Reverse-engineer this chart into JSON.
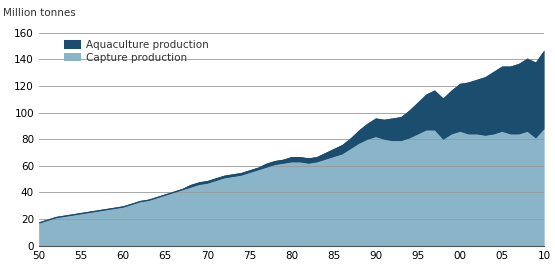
{
  "years": [
    1950,
    1951,
    1952,
    1953,
    1954,
    1955,
    1956,
    1957,
    1958,
    1959,
    1960,
    1961,
    1962,
    1963,
    1964,
    1965,
    1966,
    1967,
    1968,
    1969,
    1970,
    1971,
    1972,
    1973,
    1974,
    1975,
    1976,
    1977,
    1978,
    1979,
    1980,
    1981,
    1982,
    1983,
    1984,
    1985,
    1986,
    1987,
    1988,
    1989,
    1990,
    1991,
    1992,
    1993,
    1994,
    1995,
    1996,
    1997,
    1998,
    1999,
    2000,
    2001,
    2002,
    2003,
    2004,
    2005,
    2006,
    2007,
    2008,
    2009,
    2010
  ],
  "capture": [
    17,
    19,
    21,
    22,
    23,
    24,
    25,
    26,
    27,
    28,
    29,
    31,
    33,
    34,
    36,
    38,
    40,
    42,
    44,
    46,
    47,
    49,
    51,
    52,
    53,
    55,
    57,
    59,
    61,
    62,
    63,
    63,
    62,
    63,
    65,
    67,
    69,
    73,
    77,
    80,
    82,
    80,
    79,
    79,
    81,
    84,
    87,
    87,
    80,
    84,
    86,
    84,
    84,
    83,
    84,
    86,
    84,
    84,
    86,
    81,
    88
  ],
  "aquaculture": [
    1,
    1,
    1,
    1,
    1,
    1,
    1,
    1,
    1,
    1,
    1,
    1,
    1,
    1,
    1,
    1,
    1,
    1,
    2,
    2,
    2,
    2,
    2,
    2,
    2,
    2,
    2,
    3,
    3,
    3,
    4,
    4,
    4,
    4,
    5,
    6,
    7,
    8,
    10,
    12,
    14,
    15,
    17,
    18,
    21,
    24,
    27,
    30,
    31,
    33,
    36,
    39,
    41,
    44,
    47,
    49,
    51,
    53,
    55,
    57,
    59
  ],
  "capture_color": "#8ab5c8",
  "aquaculture_color": "#1a4d6e",
  "background_color": "#ffffff",
  "ylabel": "Million tonnes",
  "ylim": [
    0,
    160
  ],
  "yticks": [
    0,
    20,
    40,
    60,
    80,
    100,
    120,
    140,
    160
  ],
  "xtick_labels": [
    "50",
    "55",
    "60",
    "65",
    "70",
    "75",
    "80",
    "85",
    "90",
    "95",
    "00",
    "05",
    "10"
  ],
  "xtick_positions": [
    1950,
    1955,
    1960,
    1965,
    1970,
    1975,
    1980,
    1985,
    1990,
    1995,
    2000,
    2005,
    2010
  ],
  "legend_aquaculture": "Aquaculture production",
  "legend_capture": "Capture production",
  "grid_color": "#999999",
  "ylabel_fontsize": 7.5,
  "axis_fontsize": 7.5,
  "legend_fontsize": 7.5
}
